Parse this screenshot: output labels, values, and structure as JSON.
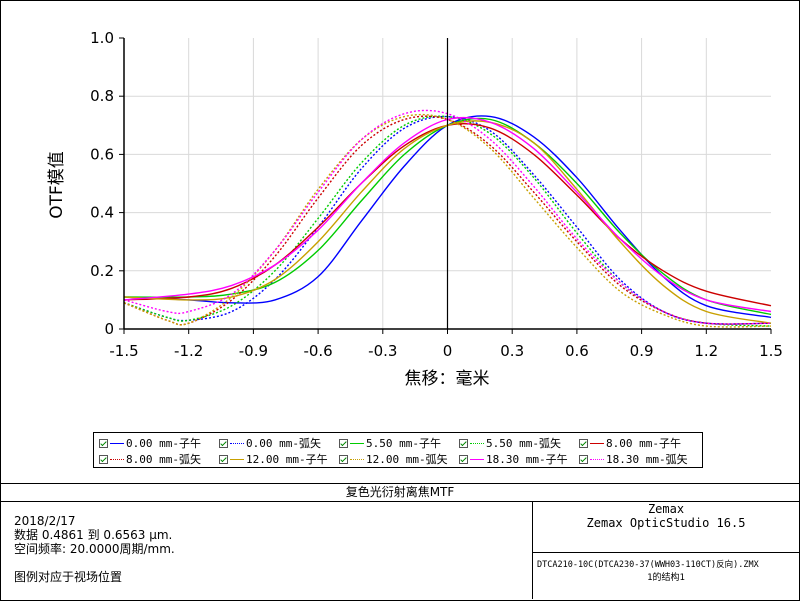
{
  "chart_data": {
    "type": "line",
    "xlabel": "焦移：毫米",
    "ylabel": "OTF模值",
    "xlim": [
      -1.5,
      1.5
    ],
    "ylim": [
      0,
      1.0
    ],
    "xticks": [
      "-1.5",
      "-1.2",
      "-0.9",
      "-0.6",
      "-0.3",
      "0",
      "0.3",
      "0.6",
      "0.9",
      "1.2",
      "1.5"
    ],
    "yticks": [
      "0",
      "0.2",
      "0.4",
      "0.6",
      "0.8",
      "1.0"
    ],
    "grid": true,
    "legend_position": "bottom",
    "series": [
      {
        "name": "0.00 mm-子午",
        "color": "#0000ff",
        "style": "solid",
        "x": [
          -1.5,
          -1.2,
          -1.0,
          -0.8,
          -0.6,
          -0.4,
          -0.2,
          0,
          0.2,
          0.4,
          0.6,
          0.8,
          1.0,
          1.2,
          1.5
        ],
        "y": [
          0.11,
          0.1,
          0.09,
          0.1,
          0.18,
          0.37,
          0.56,
          0.7,
          0.73,
          0.66,
          0.52,
          0.34,
          0.18,
          0.08,
          0.04
        ]
      },
      {
        "name": "0.00 mm-弧矢",
        "color": "#0000ff",
        "style": "dotted",
        "x": [
          -1.5,
          -1.3,
          -1.2,
          -1.0,
          -0.8,
          -0.6,
          -0.4,
          -0.2,
          0,
          0.2,
          0.4,
          0.6,
          0.8,
          1.0,
          1.2,
          1.5
        ],
        "y": [
          0.09,
          0.04,
          0.03,
          0.06,
          0.17,
          0.35,
          0.55,
          0.69,
          0.73,
          0.68,
          0.53,
          0.35,
          0.17,
          0.06,
          0.02,
          0.02
        ]
      },
      {
        "name": "5.50 mm-子午",
        "color": "#00cc00",
        "style": "solid",
        "x": [
          -1.5,
          -1.2,
          -1.0,
          -0.8,
          -0.6,
          -0.4,
          -0.2,
          0,
          0.2,
          0.4,
          0.6,
          0.8,
          1.0,
          1.2,
          1.5
        ],
        "y": [
          0.11,
          0.11,
          0.12,
          0.16,
          0.27,
          0.44,
          0.6,
          0.7,
          0.72,
          0.64,
          0.5,
          0.33,
          0.19,
          0.1,
          0.05
        ]
      },
      {
        "name": "5.50 mm-弧矢",
        "color": "#00cc00",
        "style": "dotted",
        "x": [
          -1.5,
          -1.3,
          -1.2,
          -1.0,
          -0.8,
          -0.6,
          -0.4,
          -0.2,
          0,
          0.2,
          0.4,
          0.6,
          0.8,
          1.0,
          1.2,
          1.5
        ],
        "y": [
          0.09,
          0.04,
          0.03,
          0.08,
          0.2,
          0.38,
          0.57,
          0.7,
          0.73,
          0.67,
          0.52,
          0.33,
          0.16,
          0.06,
          0.02,
          0.01
        ]
      },
      {
        "name": "8.00 mm-子午",
        "color": "#cc0000",
        "style": "solid",
        "x": [
          -1.5,
          -1.2,
          -1.0,
          -0.8,
          -0.6,
          -0.4,
          -0.2,
          0,
          0.2,
          0.4,
          0.6,
          0.8,
          1.0,
          1.2,
          1.5
        ],
        "y": [
          0.1,
          0.11,
          0.14,
          0.22,
          0.35,
          0.5,
          0.63,
          0.7,
          0.69,
          0.6,
          0.46,
          0.31,
          0.2,
          0.13,
          0.08
        ]
      },
      {
        "name": "8.00 mm-弧矢",
        "color": "#cc0000",
        "style": "dotted",
        "x": [
          -1.5,
          -1.3,
          -1.2,
          -1.0,
          -0.8,
          -0.6,
          -0.4,
          -0.2,
          0,
          0.2,
          0.4,
          0.6,
          0.8,
          1.0,
          1.2,
          1.5
        ],
        "y": [
          0.09,
          0.03,
          0.02,
          0.1,
          0.25,
          0.45,
          0.63,
          0.72,
          0.72,
          0.63,
          0.47,
          0.3,
          0.15,
          0.06,
          0.02,
          0.02
        ]
      },
      {
        "name": "12.00 mm-子午",
        "color": "#c8a000",
        "style": "solid",
        "x": [
          -1.5,
          -1.2,
          -1.0,
          -0.8,
          -0.6,
          -0.4,
          -0.2,
          0,
          0.2,
          0.4,
          0.6,
          0.8,
          1.0,
          1.2,
          1.5
        ],
        "y": [
          0.11,
          0.1,
          0.11,
          0.17,
          0.3,
          0.47,
          0.62,
          0.7,
          0.71,
          0.64,
          0.48,
          0.3,
          0.15,
          0.06,
          0.02
        ]
      },
      {
        "name": "12.00 mm-弧矢",
        "color": "#c8a000",
        "style": "dotted",
        "x": [
          -1.5,
          -1.3,
          -1.2,
          -1.0,
          -0.8,
          -0.6,
          -0.4,
          -0.2,
          0,
          0.2,
          0.4,
          0.6,
          0.8,
          1.0,
          1.2,
          1.5
        ],
        "y": [
          0.09,
          0.03,
          0.02,
          0.11,
          0.27,
          0.48,
          0.65,
          0.73,
          0.72,
          0.62,
          0.45,
          0.28,
          0.13,
          0.05,
          0.01,
          0.01
        ]
      },
      {
        "name": "18.30 mm-子午",
        "color": "#ff00ff",
        "style": "solid",
        "x": [
          -1.5,
          -1.2,
          -1.0,
          -0.8,
          -0.6,
          -0.4,
          -0.2,
          0,
          0.2,
          0.4,
          0.6,
          0.8,
          1.0,
          1.2,
          1.5
        ],
        "y": [
          0.1,
          0.12,
          0.15,
          0.22,
          0.34,
          0.5,
          0.64,
          0.72,
          0.71,
          0.62,
          0.47,
          0.31,
          0.18,
          0.1,
          0.06
        ]
      },
      {
        "name": "18.30 mm-弧矢",
        "color": "#ff00ff",
        "style": "dotted",
        "x": [
          -1.5,
          -1.3,
          -1.2,
          -1.0,
          -0.8,
          -0.6,
          -0.4,
          -0.2,
          0,
          0.2,
          0.4,
          0.6,
          0.8,
          1.0,
          1.2,
          1.5
        ],
        "y": [
          0.1,
          0.06,
          0.06,
          0.12,
          0.27,
          0.47,
          0.65,
          0.74,
          0.74,
          0.65,
          0.49,
          0.31,
          0.16,
          0.06,
          0.02,
          0.02
        ]
      }
    ]
  },
  "caption": "复色光衍射离焦MTF",
  "info": {
    "date": "2018/2/17",
    "data_range": "数据 0.4861 到 0.6563 μm.",
    "spatial_freq": "空间频率: 20.0000周期/mm.",
    "legend_note": "图例对应于视场位置"
  },
  "brand": {
    "company": "Zemax",
    "product": "Zemax OpticStudio 16.5",
    "file": "DTCA210-10C(DTCA230-37(WWH03-110CT)反向).ZMX",
    "config": "1的结构1"
  }
}
